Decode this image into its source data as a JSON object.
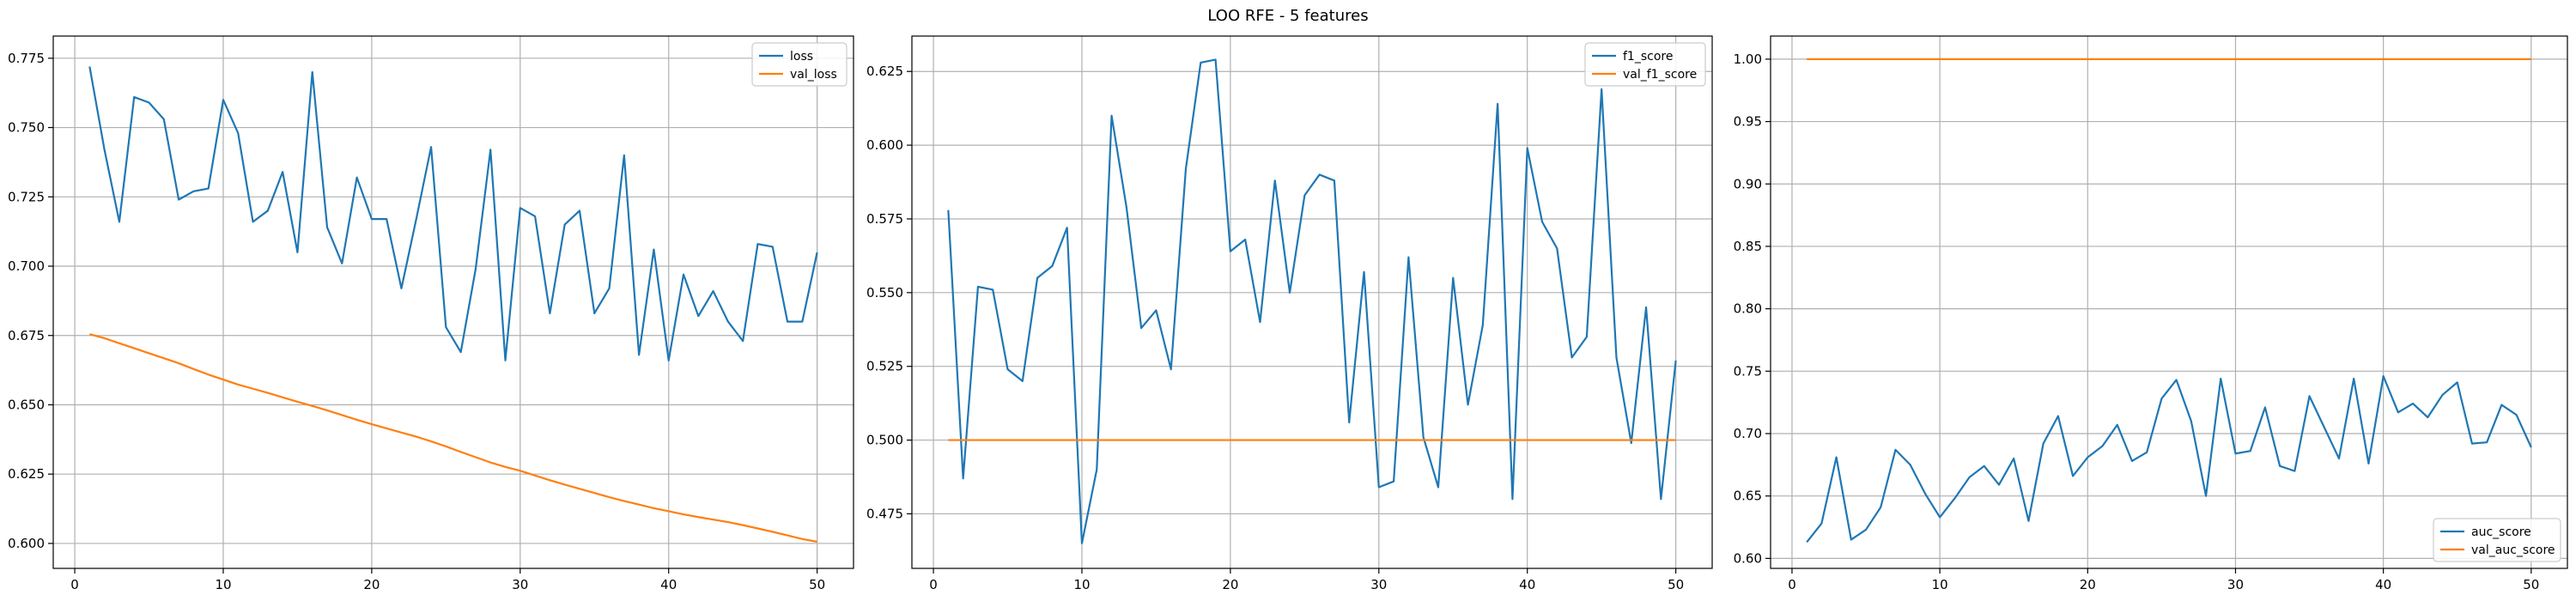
{
  "figure": {
    "title": "LOO RFE - 5 features"
  },
  "chart_data": [
    {
      "type": "line",
      "title": "",
      "xlabel": "",
      "ylabel": "",
      "xlim": [
        -1.45,
        52.45
      ],
      "ylim": [
        0.591,
        0.783
      ],
      "x_ticks": [
        0,
        10,
        20,
        30,
        40,
        50
      ],
      "y_ticks": [
        0.6,
        0.625,
        0.65,
        0.675,
        0.7,
        0.725,
        0.75,
        0.775
      ],
      "y_tick_labels": [
        "0.600",
        "0.625",
        "0.650",
        "0.675",
        "0.700",
        "0.725",
        "0.750",
        "0.775"
      ],
      "grid": true,
      "legend": "upper right",
      "x": [
        1,
        2,
        3,
        4,
        5,
        6,
        7,
        8,
        9,
        10,
        11,
        12,
        13,
        14,
        15,
        16,
        17,
        18,
        19,
        20,
        21,
        22,
        23,
        24,
        25,
        26,
        27,
        28,
        29,
        30,
        31,
        32,
        33,
        34,
        35,
        36,
        37,
        38,
        39,
        40,
        41,
        42,
        43,
        44,
        45,
        46,
        47,
        48,
        49,
        50
      ],
      "series": [
        {
          "name": "loss",
          "color": "#1f77b4",
          "values": [
            0.772,
            0.742,
            0.716,
            0.761,
            0.759,
            0.753,
            0.724,
            0.727,
            0.728,
            0.76,
            0.748,
            0.716,
            0.72,
            0.734,
            0.705,
            0.77,
            0.714,
            0.701,
            0.732,
            0.717,
            0.717,
            0.692,
            0.717,
            0.743,
            0.678,
            0.669,
            0.699,
            0.742,
            0.666,
            0.721,
            0.718,
            0.683,
            0.715,
            0.72,
            0.683,
            0.692,
            0.74,
            0.668,
            0.706,
            0.666,
            0.697,
            0.682,
            0.691,
            0.68,
            0.673,
            0.708,
            0.707,
            0.68,
            0.68,
            0.705
          ]
        },
        {
          "name": "val_loss",
          "color": "#ff7f0e",
          "values": [
            0.6755,
            0.674,
            0.6722,
            0.6704,
            0.6686,
            0.6668,
            0.665,
            0.6629,
            0.6609,
            0.6591,
            0.6573,
            0.6558,
            0.6543,
            0.6527,
            0.6511,
            0.6496,
            0.648,
            0.6463,
            0.6446,
            0.643,
            0.6415,
            0.64,
            0.6385,
            0.6368,
            0.635,
            0.633,
            0.6311,
            0.6292,
            0.6276,
            0.6262,
            0.6245,
            0.6228,
            0.6212,
            0.6197,
            0.6182,
            0.6167,
            0.6153,
            0.614,
            0.6127,
            0.6116,
            0.6105,
            0.6095,
            0.6086,
            0.6077,
            0.6066,
            0.6054,
            0.6042,
            0.6029,
            0.6016,
            0.6006
          ]
        }
      ]
    },
    {
      "type": "line",
      "title": "",
      "xlabel": "",
      "ylabel": "",
      "xlim": [
        -1.45,
        52.45
      ],
      "ylim": [
        0.4565,
        0.637
      ],
      "x_ticks": [
        0,
        10,
        20,
        30,
        40,
        50
      ],
      "y_ticks": [
        0.475,
        0.5,
        0.525,
        0.55,
        0.575,
        0.6,
        0.625
      ],
      "y_tick_labels": [
        "0.475",
        "0.500",
        "0.525",
        "0.550",
        "0.575",
        "0.600",
        "0.625"
      ],
      "grid": true,
      "legend": "upper right",
      "x": [
        1,
        2,
        3,
        4,
        5,
        6,
        7,
        8,
        9,
        10,
        11,
        12,
        13,
        14,
        15,
        16,
        17,
        18,
        19,
        20,
        21,
        22,
        23,
        24,
        25,
        26,
        27,
        28,
        29,
        30,
        31,
        32,
        33,
        34,
        35,
        36,
        37,
        38,
        39,
        40,
        41,
        42,
        43,
        44,
        45,
        46,
        47,
        48,
        49,
        50
      ],
      "series": [
        {
          "name": "f1_score",
          "color": "#1f77b4",
          "values": [
            0.578,
            0.487,
            0.552,
            0.551,
            0.524,
            0.52,
            0.555,
            0.559,
            0.572,
            0.465,
            0.49,
            0.61,
            0.579,
            0.538,
            0.544,
            0.524,
            0.592,
            0.628,
            0.629,
            0.564,
            0.568,
            0.54,
            0.588,
            0.55,
            0.583,
            0.59,
            0.588,
            0.506,
            0.557,
            0.484,
            0.486,
            0.562,
            0.501,
            0.484,
            0.555,
            0.512,
            0.539,
            0.614,
            0.48,
            0.599,
            0.574,
            0.565,
            0.528,
            0.535,
            0.619,
            0.528,
            0.499,
            0.545,
            0.48,
            0.527
          ]
        },
        {
          "name": "val_f1_score",
          "color": "#ff7f0e",
          "values": [
            0.5,
            0.5,
            0.5,
            0.5,
            0.5,
            0.5,
            0.5,
            0.5,
            0.5,
            0.5,
            0.5,
            0.5,
            0.5,
            0.5,
            0.5,
            0.5,
            0.5,
            0.5,
            0.5,
            0.5,
            0.5,
            0.5,
            0.5,
            0.5,
            0.5,
            0.5,
            0.5,
            0.5,
            0.5,
            0.5,
            0.5,
            0.5,
            0.5,
            0.5,
            0.5,
            0.5,
            0.5,
            0.5,
            0.5,
            0.5,
            0.5,
            0.5,
            0.5,
            0.5,
            0.5,
            0.5,
            0.5,
            0.5,
            0.5,
            0.5
          ]
        }
      ]
    },
    {
      "type": "line",
      "title": "",
      "xlabel": "",
      "ylabel": "",
      "xlim": [
        -1.45,
        52.45
      ],
      "ylim": [
        0.592,
        1.0185
      ],
      "x_ticks": [
        0,
        10,
        20,
        30,
        40,
        50
      ],
      "y_ticks": [
        0.6,
        0.65,
        0.7,
        0.75,
        0.8,
        0.85,
        0.9,
        0.95,
        1.0
      ],
      "y_tick_labels": [
        "0.60",
        "0.65",
        "0.70",
        "0.75",
        "0.80",
        "0.85",
        "0.90",
        "0.95",
        "1.00"
      ],
      "grid": true,
      "legend": "lower right",
      "x": [
        1,
        2,
        3,
        4,
        5,
        6,
        7,
        8,
        9,
        10,
        11,
        12,
        13,
        14,
        15,
        16,
        17,
        18,
        19,
        20,
        21,
        22,
        23,
        24,
        25,
        26,
        27,
        28,
        29,
        30,
        31,
        32,
        33,
        34,
        35,
        36,
        37,
        38,
        39,
        40,
        41,
        42,
        43,
        44,
        45,
        46,
        47,
        48,
        49,
        50
      ],
      "series": [
        {
          "name": "auc_score",
          "color": "#1f77b4",
          "values": [
            0.613,
            0.628,
            0.681,
            0.615,
            0.623,
            0.641,
            0.687,
            0.675,
            0.652,
            0.633,
            0.648,
            0.665,
            0.674,
            0.659,
            0.68,
            0.63,
            0.692,
            0.714,
            0.666,
            0.681,
            0.69,
            0.707,
            0.678,
            0.685,
            0.728,
            0.743,
            0.71,
            0.65,
            0.744,
            0.684,
            0.686,
            0.721,
            0.674,
            0.67,
            0.73,
            0.705,
            0.68,
            0.744,
            0.676,
            0.746,
            0.717,
            0.724,
            0.713,
            0.731,
            0.741,
            0.692,
            0.693,
            0.723,
            0.715,
            0.689
          ]
        },
        {
          "name": "val_auc_score",
          "color": "#ff7f0e",
          "values": [
            1.0,
            1.0,
            1.0,
            1.0,
            1.0,
            1.0,
            1.0,
            1.0,
            1.0,
            1.0,
            1.0,
            1.0,
            1.0,
            1.0,
            1.0,
            1.0,
            1.0,
            1.0,
            1.0,
            1.0,
            1.0,
            1.0,
            1.0,
            1.0,
            1.0,
            1.0,
            1.0,
            1.0,
            1.0,
            1.0,
            1.0,
            1.0,
            1.0,
            1.0,
            1.0,
            1.0,
            1.0,
            1.0,
            1.0,
            1.0,
            1.0,
            1.0,
            1.0,
            1.0,
            1.0,
            1.0,
            1.0,
            1.0,
            1.0,
            1.0
          ]
        }
      ]
    }
  ]
}
